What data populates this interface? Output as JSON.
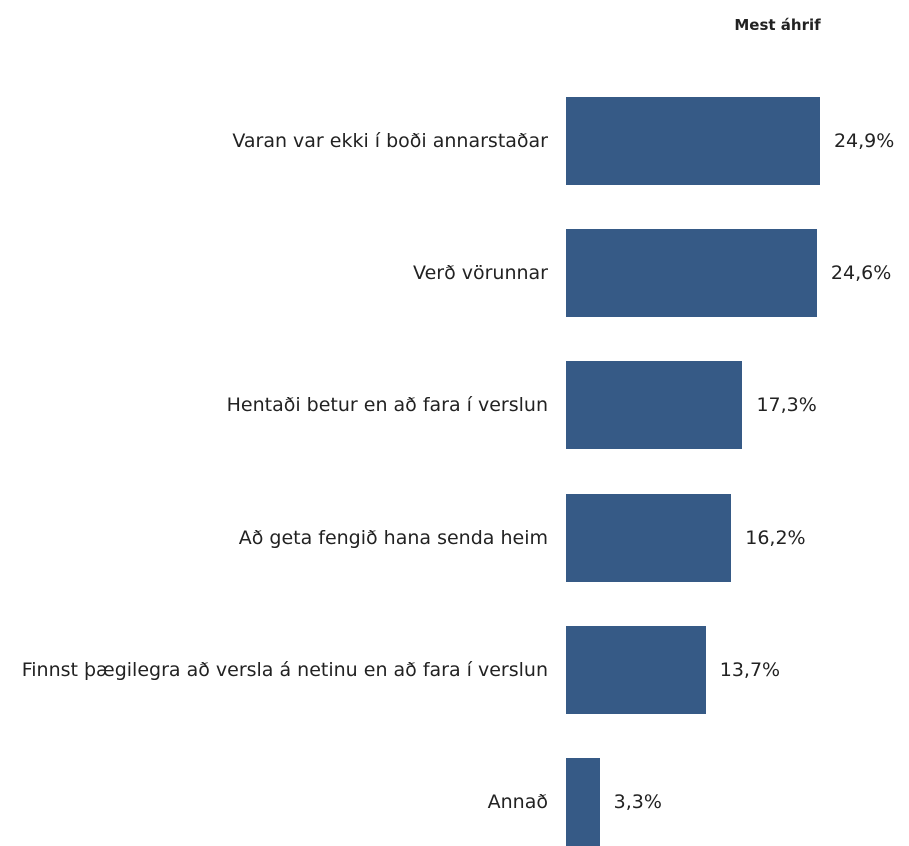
{
  "chart_data": {
    "type": "hbar",
    "title": "Mest áhrif",
    "categories": [
      "Varan var ekki í boði annarstaðar",
      "Verð vörunnar",
      "Hentaði betur en að fara í verslun",
      "Að geta fengið hana senda heim",
      "Finnst þægilegra að versla á netinu en að fara í verslun",
      "Annað"
    ],
    "values": [
      24.9,
      24.6,
      17.3,
      16.2,
      13.7,
      3.3
    ],
    "value_labels": [
      "24,9%",
      "24,6%",
      "17,3%",
      "16,2%",
      "13,7%",
      "3,3%"
    ],
    "color": "#365a86"
  }
}
